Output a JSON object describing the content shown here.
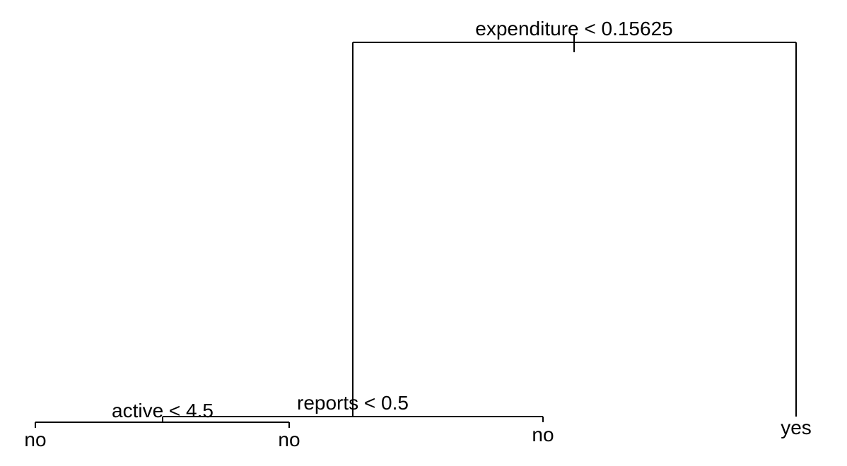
{
  "tree": {
    "splits": {
      "root": "expenditure < 0.15625",
      "reports": "reports < 0.5",
      "active": "active < 4.5"
    },
    "leaves": {
      "active_left": "no",
      "active_right": "no",
      "reports_right": "no",
      "root_right": "yes"
    },
    "line_color": "#000000"
  }
}
